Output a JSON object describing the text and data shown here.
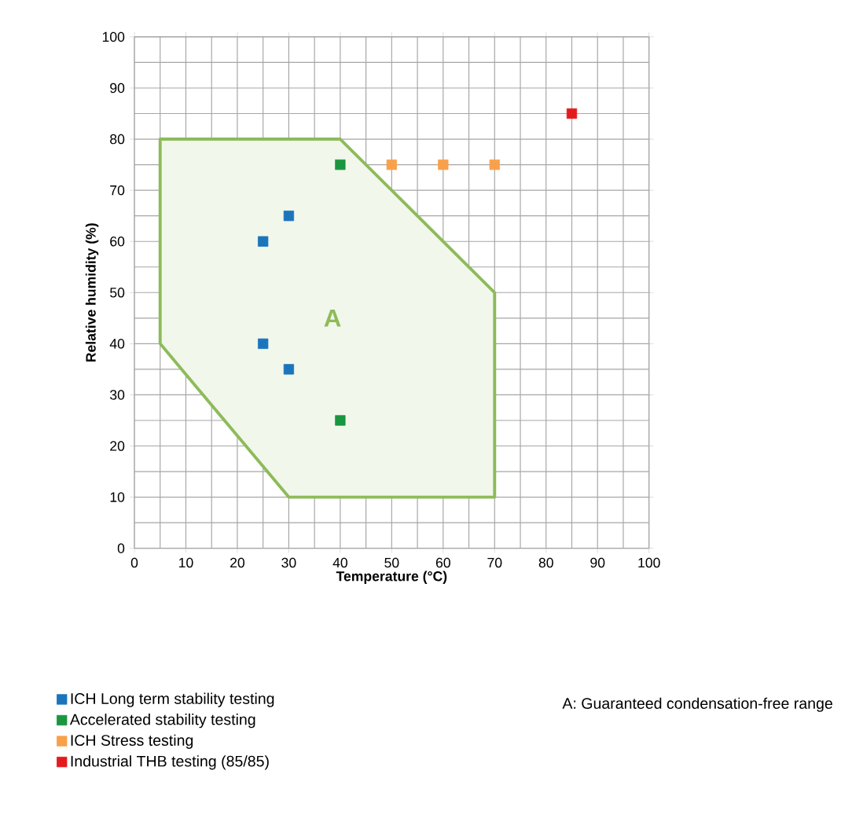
{
  "chart_data": {
    "type": "scatter",
    "xlabel": "Temperature (°C)",
    "ylabel": "Relative humidity (%)",
    "xlim": [
      0,
      100
    ],
    "ylim": [
      0,
      100
    ],
    "xticks": [
      0,
      10,
      20,
      30,
      40,
      50,
      60,
      70,
      80,
      90,
      100
    ],
    "yticks": [
      0,
      10,
      20,
      30,
      40,
      50,
      60,
      70,
      80,
      90,
      100
    ],
    "grid": true,
    "legend": "bottom left",
    "marker": "square",
    "series": [
      {
        "type": "area",
        "marker": "none",
        "color": "#8dbb5a",
        "x": [
          5,
          40,
          70,
          70,
          30,
          5,
          5
        ],
        "values": [
          80,
          80,
          50,
          10,
          10,
          40,
          80
        ]
      },
      {
        "name": "ICH Long term stability testing",
        "color": "#1b75bc",
        "x": [
          25,
          30,
          25,
          30
        ],
        "values": [
          60,
          65,
          40,
          35
        ]
      },
      {
        "name": "Accelerated stability testing",
        "color": "#1a9641",
        "x": [
          40,
          40
        ],
        "values": [
          75,
          25
        ]
      },
      {
        "name": "ICH Stress testing",
        "color": "#f8a14a",
        "x": [
          50,
          60,
          70
        ],
        "values": [
          75,
          75,
          75
        ]
      },
      {
        "name": "Industrial THB testing (85/85)",
        "color": "#e41a1c",
        "x": [
          85
        ],
        "values": [
          85
        ]
      }
    ],
    "annotations": [
      "A",
      "A: Guaranteed condensation-free range"
    ]
  }
}
